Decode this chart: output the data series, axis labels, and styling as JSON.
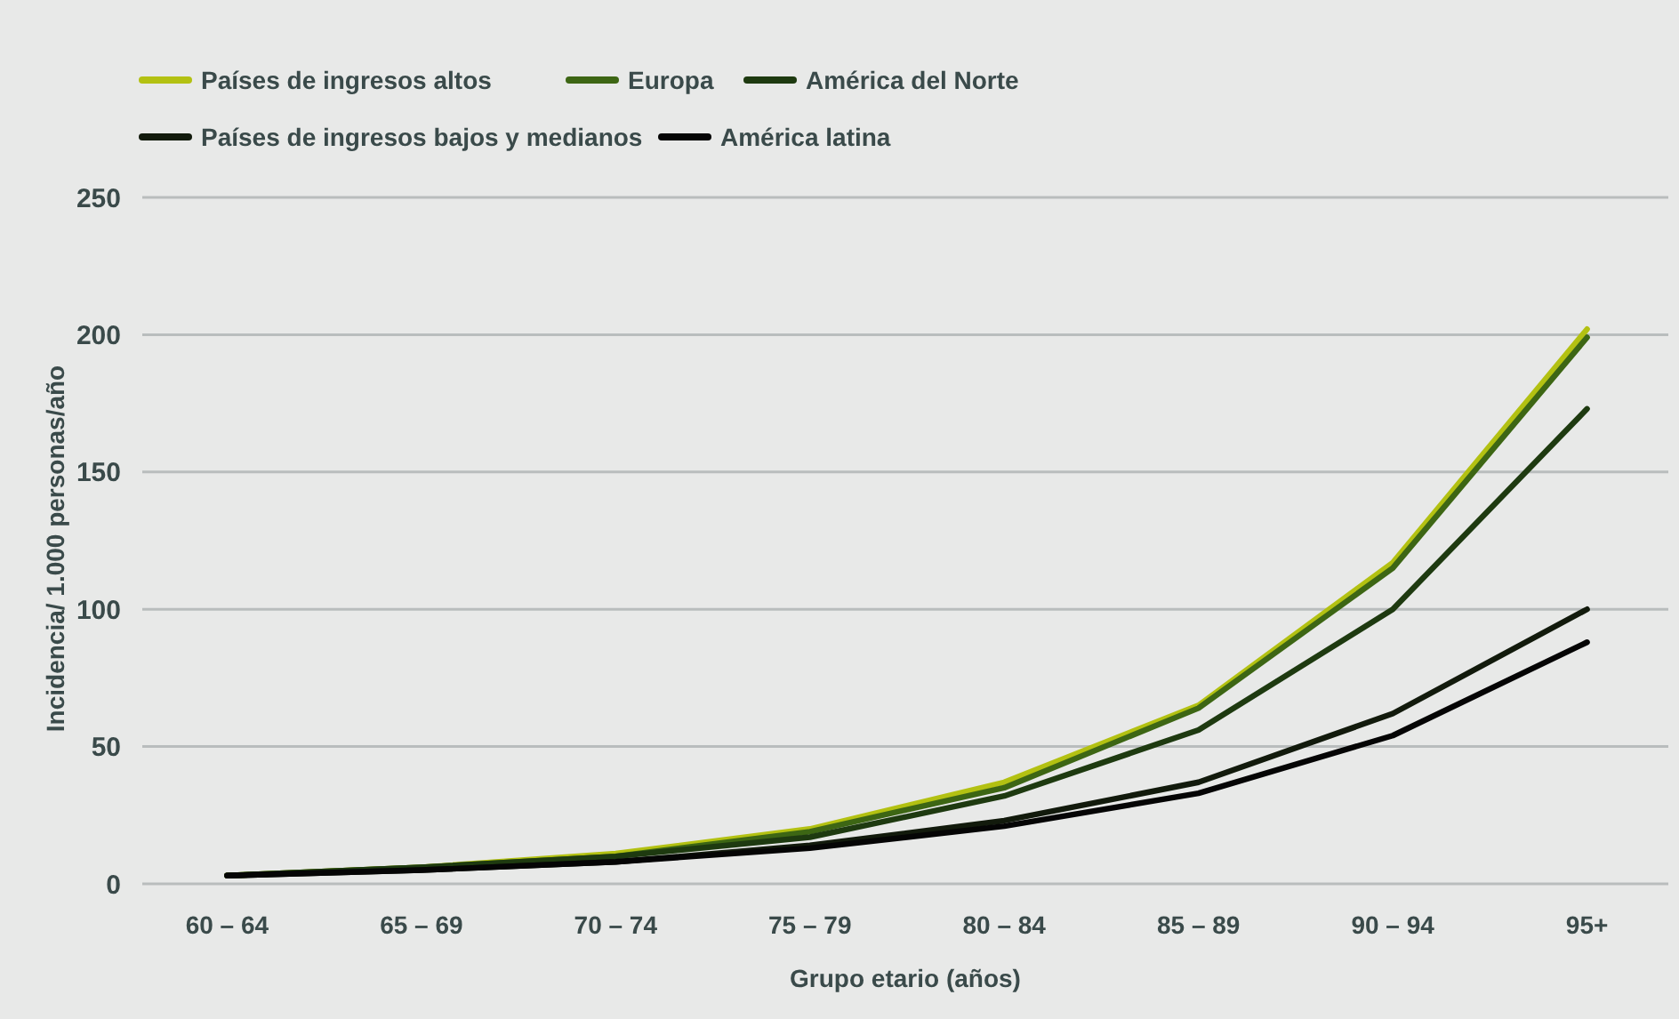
{
  "chart_data": {
    "type": "line",
    "xlabel": "Grupo etario (años)",
    "ylabel": "Incidencia/ 1.000 personas/año",
    "categories": [
      "60 – 64",
      "65 – 69",
      "70 – 74",
      "75 – 79",
      "80 – 84",
      "85 – 89",
      "90 – 94",
      "95+"
    ],
    "series": [
      {
        "name": "Países de ingresos altos",
        "color": "#b3c112",
        "values": [
          3,
          6,
          11,
          20,
          37,
          65,
          117,
          202
        ]
      },
      {
        "name": "Europa",
        "color": "#3d6614",
        "values": [
          3,
          6,
          10,
          19,
          35,
          64,
          115,
          199
        ]
      },
      {
        "name": "América del Norte",
        "color": "#1e3a10",
        "values": [
          3,
          6,
          10,
          17,
          32,
          56,
          100,
          173
        ]
      },
      {
        "name": "Países de ingresos bajos y medianos",
        "color": "#121a0c",
        "values": [
          3,
          5,
          8,
          14,
          23,
          37,
          62,
          100
        ]
      },
      {
        "name": "América latina",
        "color": "#050505",
        "values": [
          3,
          5,
          8,
          13,
          21,
          33,
          54,
          88
        ]
      }
    ],
    "ylim": [
      0,
      250
    ],
    "yticks": [
      0,
      50,
      100,
      150,
      200,
      250
    ],
    "grid": "y",
    "legend": "top left",
    "line_style": "solid",
    "marker": "none"
  }
}
